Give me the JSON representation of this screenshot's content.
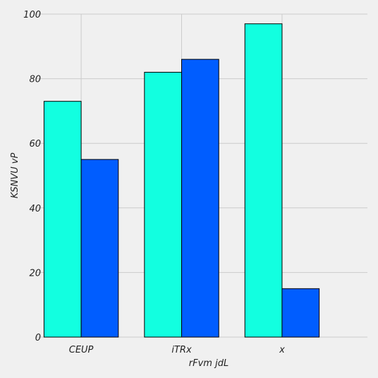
{
  "chart_data": {
    "type": "bar",
    "categories": [
      "CEUP",
      "iTRx",
      "x"
    ],
    "series": [
      {
        "values": [
          73,
          82,
          97
        ],
        "color": "#12ffe0"
      },
      {
        "values": [
          55,
          86,
          15
        ],
        "color": "#005dff"
      }
    ],
    "xlabel": "rFvm jdL",
    "ylabel": "KSNVU vP",
    "ylim": [
      0,
      100
    ],
    "yticks": [
      0,
      20,
      40,
      60,
      80,
      100
    ],
    "grid": true,
    "legend": "none"
  },
  "colors": {
    "background": "#f0f0f0",
    "grid": "#cbcbcb",
    "bar_edge": "#000000"
  }
}
